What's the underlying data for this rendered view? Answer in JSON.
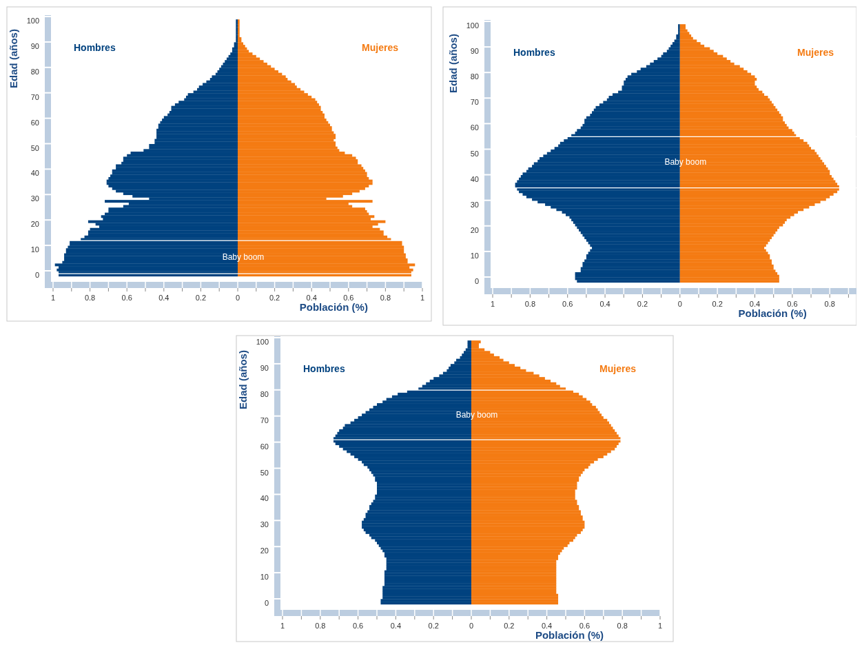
{
  "chart_data": [
    {
      "type": "bar",
      "orientation": "horizontal",
      "xlabel": "Población (%)",
      "ylabel": "Edad (años)",
      "categories": [
        "100",
        null,
        null,
        null,
        null,
        null,
        null,
        null,
        null,
        null,
        "90",
        null,
        null,
        null,
        null,
        null,
        null,
        null,
        null,
        null,
        "80",
        null,
        null,
        null,
        null,
        null,
        null,
        null,
        null,
        null,
        "70",
        null,
        null,
        null,
        null,
        null,
        null,
        null,
        null,
        null,
        "60",
        null,
        null,
        null,
        null,
        null,
        null,
        null,
        null,
        null,
        "50",
        null,
        null,
        null,
        null,
        null,
        null,
        null,
        null,
        null,
        "40",
        null,
        null,
        null,
        null,
        null,
        null,
        null,
        null,
        null,
        "30",
        null,
        null,
        null,
        null,
        null,
        null,
        null,
        null,
        null,
        "20",
        null,
        null,
        null,
        null,
        null,
        null,
        null,
        null,
        null,
        "10",
        null,
        null,
        null,
        null,
        null,
        null,
        null,
        null,
        null,
        "0"
      ],
      "series": [
        {
          "name": "Hombres",
          "color": "#00427f",
          "values": [
            -0.01,
            -0.01,
            -0.01,
            -0.01,
            -0.01,
            -0.01,
            -0.01,
            -0.01,
            -0.01,
            -0.02,
            -0.02,
            -0.03,
            -0.03,
            -0.04,
            -0.05,
            -0.06,
            -0.07,
            -0.08,
            -0.09,
            -0.1,
            -0.11,
            -0.12,
            -0.14,
            -0.15,
            -0.17,
            -0.19,
            -0.21,
            -0.22,
            -0.24,
            -0.27,
            -0.28,
            -0.29,
            -0.32,
            -0.34,
            -0.36,
            -0.36,
            -0.37,
            -0.38,
            -0.4,
            -0.41,
            -0.42,
            -0.43,
            -0.43,
            -0.44,
            -0.44,
            -0.44,
            -0.44,
            -0.45,
            -0.45,
            -0.48,
            -0.48,
            -0.51,
            -0.58,
            -0.6,
            -0.62,
            -0.62,
            -0.63,
            -0.66,
            -0.66,
            -0.68,
            -0.68,
            -0.69,
            -0.7,
            -0.71,
            -0.71,
            -0.7,
            -0.68,
            -0.66,
            -0.62,
            -0.57,
            -0.48,
            -0.72,
            -0.59,
            -0.62,
            -0.7,
            -0.7,
            -0.72,
            -0.74,
            -0.73,
            -0.81,
            -0.77,
            -0.75,
            -0.8,
            -0.81,
            -0.81,
            -0.83,
            -0.85,
            -0.91,
            -0.91,
            -0.92,
            -0.93,
            -0.93,
            -0.94,
            -0.94,
            -0.94,
            -0.95,
            -0.99,
            -0.97,
            -0.98,
            -0.97,
            -0.97
          ]
        },
        {
          "name": "Mujeres",
          "color": "#f47b13",
          "values": [
            0.01,
            0.01,
            0.01,
            0.01,
            0.01,
            0.01,
            0.01,
            0.02,
            0.02,
            0.03,
            0.04,
            0.05,
            0.06,
            0.08,
            0.1,
            0.12,
            0.14,
            0.16,
            0.18,
            0.2,
            0.22,
            0.24,
            0.26,
            0.27,
            0.29,
            0.31,
            0.32,
            0.34,
            0.36,
            0.38,
            0.4,
            0.42,
            0.43,
            0.44,
            0.45,
            0.45,
            0.46,
            0.47,
            0.47,
            0.48,
            0.49,
            0.5,
            0.51,
            0.51,
            0.52,
            0.53,
            0.53,
            0.52,
            0.53,
            0.53,
            0.54,
            0.55,
            0.58,
            0.62,
            0.64,
            0.65,
            0.65,
            0.67,
            0.68,
            0.69,
            0.7,
            0.7,
            0.71,
            0.73,
            0.73,
            0.71,
            0.69,
            0.66,
            0.62,
            0.57,
            0.48,
            0.73,
            0.6,
            0.62,
            0.69,
            0.7,
            0.71,
            0.74,
            0.72,
            0.8,
            0.76,
            0.73,
            0.77,
            0.79,
            0.79,
            0.81,
            0.83,
            0.89,
            0.89,
            0.9,
            0.9,
            0.9,
            0.91,
            0.91,
            0.92,
            0.92,
            0.96,
            0.93,
            0.95,
            0.94,
            0.94
          ]
        }
      ],
      "xlim": [
        -1,
        1
      ],
      "xticks": [
        {
          "value": -1,
          "label": "1"
        },
        {
          "value": -0.9,
          "label": null
        },
        {
          "value": -0.8,
          "label": "0.8"
        },
        {
          "value": -0.7,
          "label": null
        },
        {
          "value": -0.6,
          "label": "0.6"
        },
        {
          "value": -0.5,
          "label": null
        },
        {
          "value": -0.4,
          "label": "0.4"
        },
        {
          "value": -0.3,
          "label": null
        },
        {
          "value": -0.2,
          "label": "0.2"
        },
        {
          "value": -0.1,
          "label": null
        },
        0,
        {
          "value": 0.1,
          "label": null
        },
        0.2,
        {
          "value": 0.3,
          "label": null
        },
        0.4,
        {
          "value": 0.5,
          "label": null
        },
        0.6,
        {
          "value": 0.7,
          "label": null
        },
        0.8,
        {
          "value": 0.9,
          "label": null
        },
        1
      ],
      "stacked": true,
      "annotations": [
        "Baby boom"
      ]
    },
    {
      "type": "bar",
      "orientation": "horizontal",
      "xlabel": "Población (%)",
      "ylabel": "Edad (años)",
      "categories": [
        "100",
        null,
        null,
        null,
        null,
        null,
        null,
        null,
        null,
        null,
        "90",
        null,
        null,
        null,
        null,
        null,
        null,
        null,
        null,
        null,
        "80",
        null,
        null,
        null,
        null,
        null,
        null,
        null,
        null,
        null,
        "70",
        null,
        null,
        null,
        null,
        null,
        null,
        null,
        null,
        null,
        "60",
        null,
        null,
        null,
        null,
        null,
        null,
        null,
        null,
        null,
        "50",
        null,
        null,
        null,
        null,
        null,
        null,
        null,
        null,
        null,
        "40",
        null,
        null,
        null,
        null,
        null,
        null,
        null,
        null,
        null,
        "30",
        null,
        null,
        null,
        null,
        null,
        null,
        null,
        null,
        null,
        "20",
        null,
        null,
        null,
        null,
        null,
        null,
        null,
        null,
        null,
        "10",
        null,
        null,
        null,
        null,
        null,
        null,
        null,
        null,
        null,
        "0"
      ],
      "series": [
        {
          "name": "Hombres",
          "color": "#00427f",
          "values": [
            -0.01,
            -0.01,
            -0.01,
            -0.01,
            -0.02,
            -0.02,
            -0.03,
            -0.04,
            -0.05,
            -0.06,
            -0.07,
            -0.09,
            -0.1,
            -0.12,
            -0.14,
            -0.16,
            -0.18,
            -0.21,
            -0.23,
            -0.26,
            -0.28,
            -0.29,
            -0.3,
            -0.3,
            -0.31,
            -0.31,
            -0.33,
            -0.36,
            -0.38,
            -0.39,
            -0.41,
            -0.43,
            -0.45,
            -0.46,
            -0.47,
            -0.48,
            -0.5,
            -0.51,
            -0.51,
            -0.52,
            -0.53,
            -0.55,
            -0.56,
            -0.58,
            -0.6,
            -0.62,
            -0.64,
            -0.65,
            -0.67,
            -0.69,
            -0.71,
            -0.73,
            -0.75,
            -0.76,
            -0.78,
            -0.79,
            -0.81,
            -0.82,
            -0.84,
            -0.85,
            -0.86,
            -0.87,
            -0.88,
            -0.88,
            -0.87,
            -0.86,
            -0.84,
            -0.82,
            -0.79,
            -0.76,
            -0.72,
            -0.69,
            -0.66,
            -0.63,
            -0.61,
            -0.59,
            -0.58,
            -0.57,
            -0.56,
            -0.55,
            -0.54,
            -0.53,
            -0.52,
            -0.51,
            -0.5,
            -0.49,
            -0.48,
            -0.47,
            -0.48,
            -0.49,
            -0.5,
            -0.5,
            -0.51,
            -0.52,
            -0.52,
            -0.53,
            -0.53,
            -0.56,
            -0.56,
            -0.56,
            -0.55
          ]
        },
        {
          "name": "Mujeres",
          "color": "#f47b13",
          "values": [
            0.03,
            0.03,
            0.04,
            0.05,
            0.06,
            0.07,
            0.09,
            0.11,
            0.13,
            0.16,
            0.18,
            0.2,
            0.23,
            0.25,
            0.27,
            0.29,
            0.32,
            0.34,
            0.36,
            0.38,
            0.4,
            0.41,
            0.4,
            0.4,
            0.41,
            0.42,
            0.44,
            0.45,
            0.47,
            0.48,
            0.49,
            0.5,
            0.51,
            0.52,
            0.53,
            0.54,
            0.55,
            0.55,
            0.56,
            0.57,
            0.58,
            0.6,
            0.61,
            0.62,
            0.64,
            0.66,
            0.68,
            0.69,
            0.7,
            0.72,
            0.73,
            0.74,
            0.75,
            0.76,
            0.77,
            0.78,
            0.79,
            0.8,
            0.8,
            0.81,
            0.82,
            0.83,
            0.84,
            0.85,
            0.85,
            0.84,
            0.82,
            0.8,
            0.78,
            0.75,
            0.72,
            0.69,
            0.66,
            0.63,
            0.61,
            0.59,
            0.57,
            0.56,
            0.55,
            0.53,
            0.52,
            0.51,
            0.5,
            0.49,
            0.48,
            0.47,
            0.46,
            0.45,
            0.46,
            0.47,
            0.48,
            0.48,
            0.49,
            0.49,
            0.5,
            0.5,
            0.51,
            0.52,
            0.53,
            0.53,
            0.53
          ]
        }
      ],
      "xlim": [
        -1,
        0.95
      ],
      "xticks": [
        {
          "value": -1,
          "label": "1"
        },
        {
          "value": -0.9,
          "label": null
        },
        {
          "value": -0.8,
          "label": "0.8"
        },
        {
          "value": -0.7,
          "label": null
        },
        {
          "value": -0.6,
          "label": "0.6"
        },
        {
          "value": -0.5,
          "label": null
        },
        {
          "value": -0.4,
          "label": "0.4"
        },
        {
          "value": -0.3,
          "label": null
        },
        {
          "value": -0.2,
          "label": "0.2"
        },
        {
          "value": -0.1,
          "label": null
        },
        0,
        {
          "value": 0.1,
          "label": null
        },
        0.2,
        {
          "value": 0.3,
          "label": null
        },
        0.4,
        {
          "value": 0.5,
          "label": null
        },
        0.6,
        {
          "value": 0.7,
          "label": null
        },
        0.8,
        {
          "value": 0.9,
          "label": null
        }
      ],
      "stacked": true,
      "annotations": [
        "Baby boom"
      ]
    },
    {
      "type": "bar",
      "orientation": "horizontal",
      "xlabel": "Población (%)",
      "ylabel": "Edad (años)",
      "categories": [
        "100",
        null,
        null,
        null,
        null,
        null,
        null,
        null,
        null,
        null,
        "90",
        null,
        null,
        null,
        null,
        null,
        null,
        null,
        null,
        null,
        "80",
        null,
        null,
        null,
        null,
        null,
        null,
        null,
        null,
        null,
        "70",
        null,
        null,
        null,
        null,
        null,
        null,
        null,
        null,
        null,
        "60",
        null,
        null,
        null,
        null,
        null,
        null,
        null,
        null,
        null,
        "50",
        null,
        null,
        null,
        null,
        null,
        null,
        null,
        null,
        null,
        "40",
        null,
        null,
        null,
        null,
        null,
        null,
        null,
        null,
        null,
        "30",
        null,
        null,
        null,
        null,
        null,
        null,
        null,
        null,
        null,
        "20",
        null,
        null,
        null,
        null,
        null,
        null,
        null,
        null,
        null,
        "10",
        null,
        null,
        null,
        null,
        null,
        null,
        null,
        null,
        null,
        "0"
      ],
      "series": [
        {
          "name": "Hombres",
          "color": "#00427f",
          "values": [
            -0.02,
            -0.02,
            -0.02,
            -0.03,
            -0.04,
            -0.05,
            -0.06,
            -0.08,
            -0.09,
            -0.11,
            -0.12,
            -0.13,
            -0.15,
            -0.17,
            -0.2,
            -0.22,
            -0.24,
            -0.26,
            -0.28,
            -0.34,
            -0.39,
            -0.42,
            -0.45,
            -0.47,
            -0.5,
            -0.52,
            -0.54,
            -0.56,
            -0.58,
            -0.6,
            -0.62,
            -0.64,
            -0.67,
            -0.68,
            -0.7,
            -0.71,
            -0.72,
            -0.73,
            -0.73,
            -0.72,
            -0.7,
            -0.68,
            -0.66,
            -0.64,
            -0.62,
            -0.6,
            -0.58,
            -0.57,
            -0.55,
            -0.54,
            -0.53,
            -0.52,
            -0.51,
            -0.51,
            -0.5,
            -0.5,
            -0.5,
            -0.5,
            -0.5,
            -0.51,
            -0.51,
            -0.52,
            -0.53,
            -0.54,
            -0.54,
            -0.55,
            -0.56,
            -0.56,
            -0.57,
            -0.58,
            -0.58,
            -0.58,
            -0.57,
            -0.56,
            -0.54,
            -0.53,
            -0.51,
            -0.5,
            -0.49,
            -0.48,
            -0.47,
            -0.46,
            -0.46,
            -0.45,
            -0.45,
            -0.45,
            -0.45,
            -0.45,
            -0.46,
            -0.46,
            -0.46,
            -0.46,
            -0.46,
            -0.46,
            -0.47,
            -0.47,
            -0.47,
            -0.47,
            -0.47,
            -0.48,
            -0.48
          ]
        },
        {
          "name": "Mujeres",
          "color": "#f47b13",
          "values": [
            0.05,
            0.04,
            0.04,
            0.07,
            0.1,
            0.12,
            0.15,
            0.17,
            0.2,
            0.23,
            0.26,
            0.29,
            0.33,
            0.36,
            0.39,
            0.42,
            0.45,
            0.47,
            0.5,
            0.54,
            0.57,
            0.59,
            0.61,
            0.63,
            0.64,
            0.66,
            0.67,
            0.68,
            0.69,
            0.7,
            0.72,
            0.73,
            0.74,
            0.75,
            0.76,
            0.77,
            0.78,
            0.79,
            0.79,
            0.78,
            0.77,
            0.76,
            0.74,
            0.72,
            0.7,
            0.67,
            0.65,
            0.63,
            0.62,
            0.6,
            0.59,
            0.58,
            0.57,
            0.57,
            0.56,
            0.56,
            0.56,
            0.55,
            0.55,
            0.55,
            0.55,
            0.56,
            0.56,
            0.57,
            0.57,
            0.58,
            0.58,
            0.59,
            0.59,
            0.6,
            0.6,
            0.6,
            0.59,
            0.58,
            0.56,
            0.55,
            0.54,
            0.52,
            0.51,
            0.49,
            0.48,
            0.47,
            0.46,
            0.46,
            0.45,
            0.45,
            0.45,
            0.45,
            0.45,
            0.45,
            0.45,
            0.45,
            0.45,
            0.45,
            0.45,
            0.45,
            0.45,
            0.46,
            0.46,
            0.46,
            0.46
          ]
        }
      ],
      "xlim": [
        -1,
        1
      ],
      "xticks": [
        {
          "value": -1,
          "label": "1"
        },
        {
          "value": -0.9,
          "label": null
        },
        {
          "value": -0.8,
          "label": "0.8"
        },
        {
          "value": -0.7,
          "label": null
        },
        {
          "value": -0.6,
          "label": "0.6"
        },
        {
          "value": -0.5,
          "label": null
        },
        {
          "value": -0.4,
          "label": "0.4"
        },
        {
          "value": -0.3,
          "label": null
        },
        {
          "value": -0.2,
          "label": "0.2"
        },
        {
          "value": -0.1,
          "label": null
        },
        0,
        {
          "value": 0.1,
          "label": null
        },
        0.2,
        {
          "value": 0.3,
          "label": null
        },
        0.4,
        {
          "value": 0.5,
          "label": null
        },
        0.6,
        {
          "value": 0.7,
          "label": null
        },
        0.8,
        {
          "value": 0.9,
          "label": null
        },
        1
      ],
      "stacked": true,
      "annotations": [
        "Baby boom"
      ]
    }
  ]
}
